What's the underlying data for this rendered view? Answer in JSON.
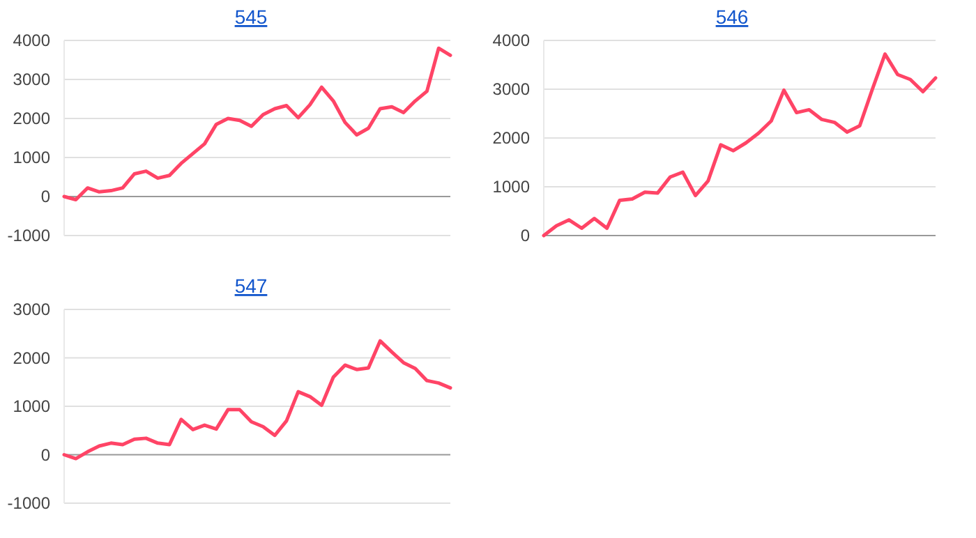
{
  "chart_data": [
    {
      "type": "line",
      "title": "545",
      "categories": [
        null,
        null,
        null,
        null,
        null,
        null,
        null,
        null,
        null,
        null,
        null,
        null,
        null,
        null,
        null,
        null,
        null,
        null,
        null,
        null,
        null,
        null,
        null,
        null,
        null,
        null,
        null,
        null,
        null,
        null,
        null,
        null,
        null,
        null
      ],
      "series": [
        {
          "color": "#ff4466",
          "values": [
            0,
            -80,
            220,
            120,
            150,
            220,
            580,
            650,
            470,
            540,
            850,
            1100,
            1350,
            1850,
            2000,
            1950,
            1800,
            2100,
            2250,
            2330,
            2020,
            2350,
            2800,
            2450,
            1900,
            1580,
            1750,
            2250,
            2300,
            2150,
            2450,
            2700,
            3800,
            3620
          ]
        }
      ],
      "ylim": [
        -1000,
        4000
      ],
      "yticks": [
        -1000,
        0,
        1000,
        2000,
        3000,
        4000
      ],
      "grid": true,
      "tick_labels": "y"
    },
    {
      "type": "line",
      "title": "546",
      "categories": [
        null,
        null,
        null,
        null,
        null,
        null,
        null,
        null,
        null,
        null,
        null,
        null,
        null,
        null,
        null,
        null,
        null,
        null,
        null,
        null,
        null,
        null,
        null,
        null,
        null,
        null,
        null,
        null,
        null,
        null,
        null,
        null
      ],
      "series": [
        {
          "color": "#ff4466",
          "values": [
            0,
            200,
            320,
            150,
            350,
            150,
            720,
            750,
            890,
            870,
            1200,
            1300,
            820,
            1120,
            1860,
            1740,
            1900,
            2100,
            2350,
            2980,
            2520,
            2580,
            2380,
            2320,
            2120,
            2250,
            3000,
            3720,
            3300,
            3200,
            2950,
            3230
          ]
        }
      ],
      "ylim": [
        0,
        4000
      ],
      "yticks": [
        0,
        1000,
        2000,
        3000,
        4000
      ],
      "grid": true,
      "tick_labels": "y"
    },
    {
      "type": "line",
      "title": "547",
      "categories": [
        null,
        null,
        null,
        null,
        null,
        null,
        null,
        null,
        null,
        null,
        null,
        null,
        null,
        null,
        null,
        null,
        null,
        null,
        null,
        null,
        null,
        null,
        null,
        null,
        null,
        null,
        null,
        null,
        null,
        null,
        null,
        null,
        null,
        null
      ],
      "series": [
        {
          "color": "#ff4466",
          "values": [
            0,
            -80,
            60,
            180,
            240,
            210,
            320,
            340,
            240,
            210,
            730,
            520,
            610,
            530,
            930,
            930,
            680,
            580,
            400,
            700,
            1300,
            1200,
            1020,
            1600,
            1850,
            1760,
            1790,
            2350,
            2120,
            1900,
            1780,
            1530,
            1480,
            1380
          ]
        }
      ],
      "ylim": [
        -1000,
        3000
      ],
      "yticks": [
        -1000,
        0,
        1000,
        2000,
        3000
      ],
      "grid": true,
      "tick_labels": "y"
    }
  ]
}
